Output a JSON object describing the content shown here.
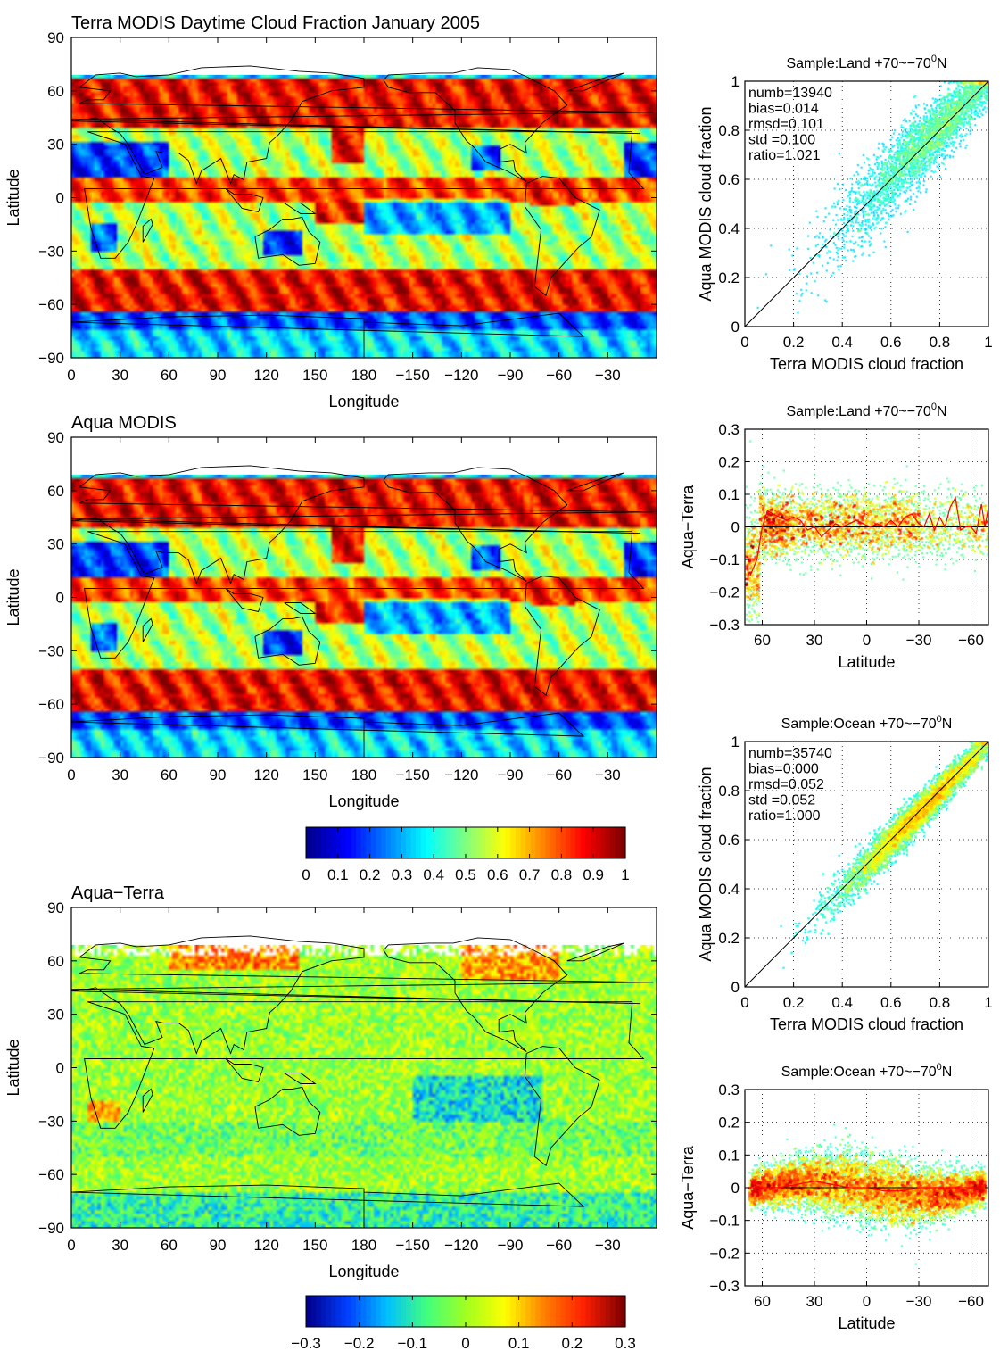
{
  "colors": {
    "jet": [
      "#00008f",
      "#0000ff",
      "#0080ff",
      "#00ffff",
      "#80ff80",
      "#ffff00",
      "#ff8000",
      "#ff0000",
      "#800000"
    ],
    "diff_scale": [
      "#00008f",
      "#0040ff",
      "#00c0ff",
      "#40ff80",
      "#a0ff20",
      "#ffff00",
      "#ff8000",
      "#ff2000",
      "#800000"
    ],
    "fit_line": "#000000",
    "running_mean": "#ff0000",
    "no_data": "#ffffff"
  },
  "chart_data": [
    {
      "type": "heatmap",
      "id": "terra_map",
      "title": "Terra MODIS Daytime Cloud Fraction January 2005",
      "xlabel": "Longitude",
      "ylabel": "Latitude",
      "xticks": [
        "0",
        "30",
        "60",
        "90",
        "120",
        "150",
        "180",
        "−150",
        "−120",
        "−90",
        "−60",
        "−30"
      ],
      "yticks": [
        "90",
        "60",
        "30",
        "0",
        "−30",
        "−60",
        "−90"
      ],
      "xlim": [
        0,
        360
      ],
      "ylim": [
        -90,
        90
      ],
      "data_lat_range": [
        -90,
        69
      ],
      "colorbar": "cloud_fraction"
    },
    {
      "type": "heatmap",
      "id": "aqua_map",
      "title": "Aqua MODIS",
      "xlabel": "Longitude",
      "ylabel": "Latitude",
      "xticks": [
        "0",
        "30",
        "60",
        "90",
        "120",
        "150",
        "180",
        "−150",
        "−120",
        "−90",
        "−60",
        "−30"
      ],
      "yticks": [
        "90",
        "60",
        "30",
        "0",
        "−30",
        "−60",
        "−90"
      ],
      "xlim": [
        0,
        360
      ],
      "ylim": [
        -90,
        90
      ],
      "data_lat_range": [
        -90,
        69
      ],
      "colorbar": "cloud_fraction"
    },
    {
      "type": "heatmap",
      "id": "diff_map",
      "title": "Aqua−Terra",
      "xlabel": "Longitude",
      "ylabel": "Latitude",
      "xticks": [
        "0",
        "30",
        "60",
        "90",
        "120",
        "150",
        "180",
        "−150",
        "−120",
        "−90",
        "−60",
        "−30"
      ],
      "yticks": [
        "90",
        "60",
        "30",
        "0",
        "−30",
        "−60",
        "−90"
      ],
      "xlim": [
        0,
        360
      ],
      "ylim": [
        -90,
        90
      ],
      "data_lat_range": [
        -90,
        69
      ],
      "colorbar": "difference"
    },
    {
      "type": "colorbar",
      "id": "cloud_fraction",
      "ticks": [
        "0",
        "0.1",
        "0.2",
        "0.3",
        "0.4",
        "0.5",
        "0.6",
        "0.7",
        "0.8",
        "0.9",
        "1"
      ],
      "range": [
        0,
        1
      ]
    },
    {
      "type": "colorbar",
      "id": "difference",
      "ticks": [
        "−0.3",
        "−0.2",
        "−0.1",
        "0",
        "0.1",
        "0.2",
        "0.3"
      ],
      "range": [
        -0.3,
        0.3
      ]
    },
    {
      "type": "scatter",
      "id": "land_scatter",
      "title": "Sample:Land  +70~−70",
      "title_sup": "0",
      "title_suffix": "N",
      "xlabel": "Terra MODIS cloud fraction",
      "ylabel": "Aqua MODIS cloud fraction",
      "xlim": [
        0,
        1
      ],
      "ylim": [
        0,
        1
      ],
      "xticks": [
        "0",
        "0.2",
        "0.4",
        "0.6",
        "0.8",
        "1"
      ],
      "yticks": [
        "0",
        "0.2",
        "0.4",
        "0.6",
        "0.8",
        "1"
      ],
      "grid": true,
      "stats": [
        "numb=13940",
        "bias=0.014",
        "rmsd=0.101",
        "std =0.100",
        "ratio=1.021"
      ],
      "n_points": 13940,
      "bias": 0.014,
      "rmsd": 0.101,
      "std": 0.1,
      "ratio": 1.021,
      "fit_line": {
        "x": [
          0,
          1
        ],
        "y": [
          0,
          1
        ]
      }
    },
    {
      "type": "scatter",
      "id": "land_diff",
      "title": "Sample:Land  +70~−70",
      "title_sup": "0",
      "title_suffix": "N",
      "xlabel": "Latitude",
      "ylabel": "Aqua−Terra",
      "xlim": [
        70,
        -70
      ],
      "ylim": [
        -0.3,
        0.3
      ],
      "xticks": [
        "60",
        "30",
        "0",
        "−30",
        "−60"
      ],
      "yticks": [
        "0.3",
        "0.2",
        "0.1",
        "0",
        "−0.1",
        "−0.2",
        "−0.3"
      ],
      "grid": true,
      "running_mean": {
        "lat": [
          67,
          63,
          60,
          57,
          54,
          50,
          46,
          42,
          38,
          34,
          30,
          26,
          22,
          18,
          14,
          10,
          6,
          2,
          -2,
          -6,
          -10,
          -14,
          -18,
          -22,
          -26,
          -30,
          -33,
          -36,
          -39,
          -42,
          -45,
          -48,
          -51,
          -54,
          -57,
          -60,
          -63,
          -66,
          -68,
          -70
        ],
        "y": [
          -0.15,
          -0.1,
          0.0,
          0.05,
          0.04,
          0.03,
          0.02,
          0.03,
          0.02,
          -0.01,
          0.0,
          -0.03,
          -0.01,
          0.01,
          0.0,
          0.01,
          0.02,
          0.01,
          0.0,
          0.01,
          0.0,
          0.02,
          0.0,
          0.03,
          0.04,
          0.01,
          0.0,
          0.04,
          -0.01,
          0.03,
          0.0,
          0.06,
          0.09,
          -0.01,
          0.0,
          0.0,
          -0.02,
          0.07,
          0.0,
          0.06
        ]
      }
    },
    {
      "type": "scatter",
      "id": "ocean_scatter",
      "title": "Sample:Ocean +70~−70",
      "title_sup": "0",
      "title_suffix": "N",
      "xlabel": "Terra MODIS cloud fraction",
      "ylabel": "Aqua MODIS cloud fraction",
      "xlim": [
        0,
        1
      ],
      "ylim": [
        0,
        1
      ],
      "xticks": [
        "0",
        "0.2",
        "0.4",
        "0.6",
        "0.8",
        "1"
      ],
      "yticks": [
        "0",
        "0.2",
        "0.4",
        "0.6",
        "0.8",
        "1"
      ],
      "grid": true,
      "stats": [
        "numb=35740",
        "bias=0.000",
        "rmsd=0.052",
        "std =0.052",
        "ratio=1.000"
      ],
      "n_points": 35740,
      "bias": 0.0,
      "rmsd": 0.052,
      "std": 0.052,
      "ratio": 1.0,
      "fit_line": {
        "x": [
          0,
          1
        ],
        "y": [
          0,
          1
        ]
      }
    },
    {
      "type": "scatter",
      "id": "ocean_diff",
      "title": "Sample:Ocean +70~−70",
      "title_sup": "0",
      "title_suffix": "N",
      "xlabel": "Latitude",
      "ylabel": "Aqua−Terra",
      "xlim": [
        70,
        -70
      ],
      "ylim": [
        -0.3,
        0.3
      ],
      "xticks": [
        "60",
        "30",
        "0",
        "−30",
        "−60"
      ],
      "yticks": [
        "0.3",
        "0.2",
        "0.1",
        "0",
        "−0.1",
        "−0.2",
        "−0.3"
      ],
      "grid": true,
      "running_mean": {
        "lat": [
          68,
          60,
          50,
          40,
          30,
          20,
          10,
          0,
          -10,
          -20,
          -30,
          -40,
          -50,
          -60,
          -68
        ],
        "y": [
          0.0,
          0.0,
          0.0,
          0.01,
          0.02,
          0.01,
          0.0,
          0.0,
          -0.01,
          -0.01,
          0.0,
          0.0,
          0.0,
          0.0,
          0.0
        ]
      }
    }
  ]
}
